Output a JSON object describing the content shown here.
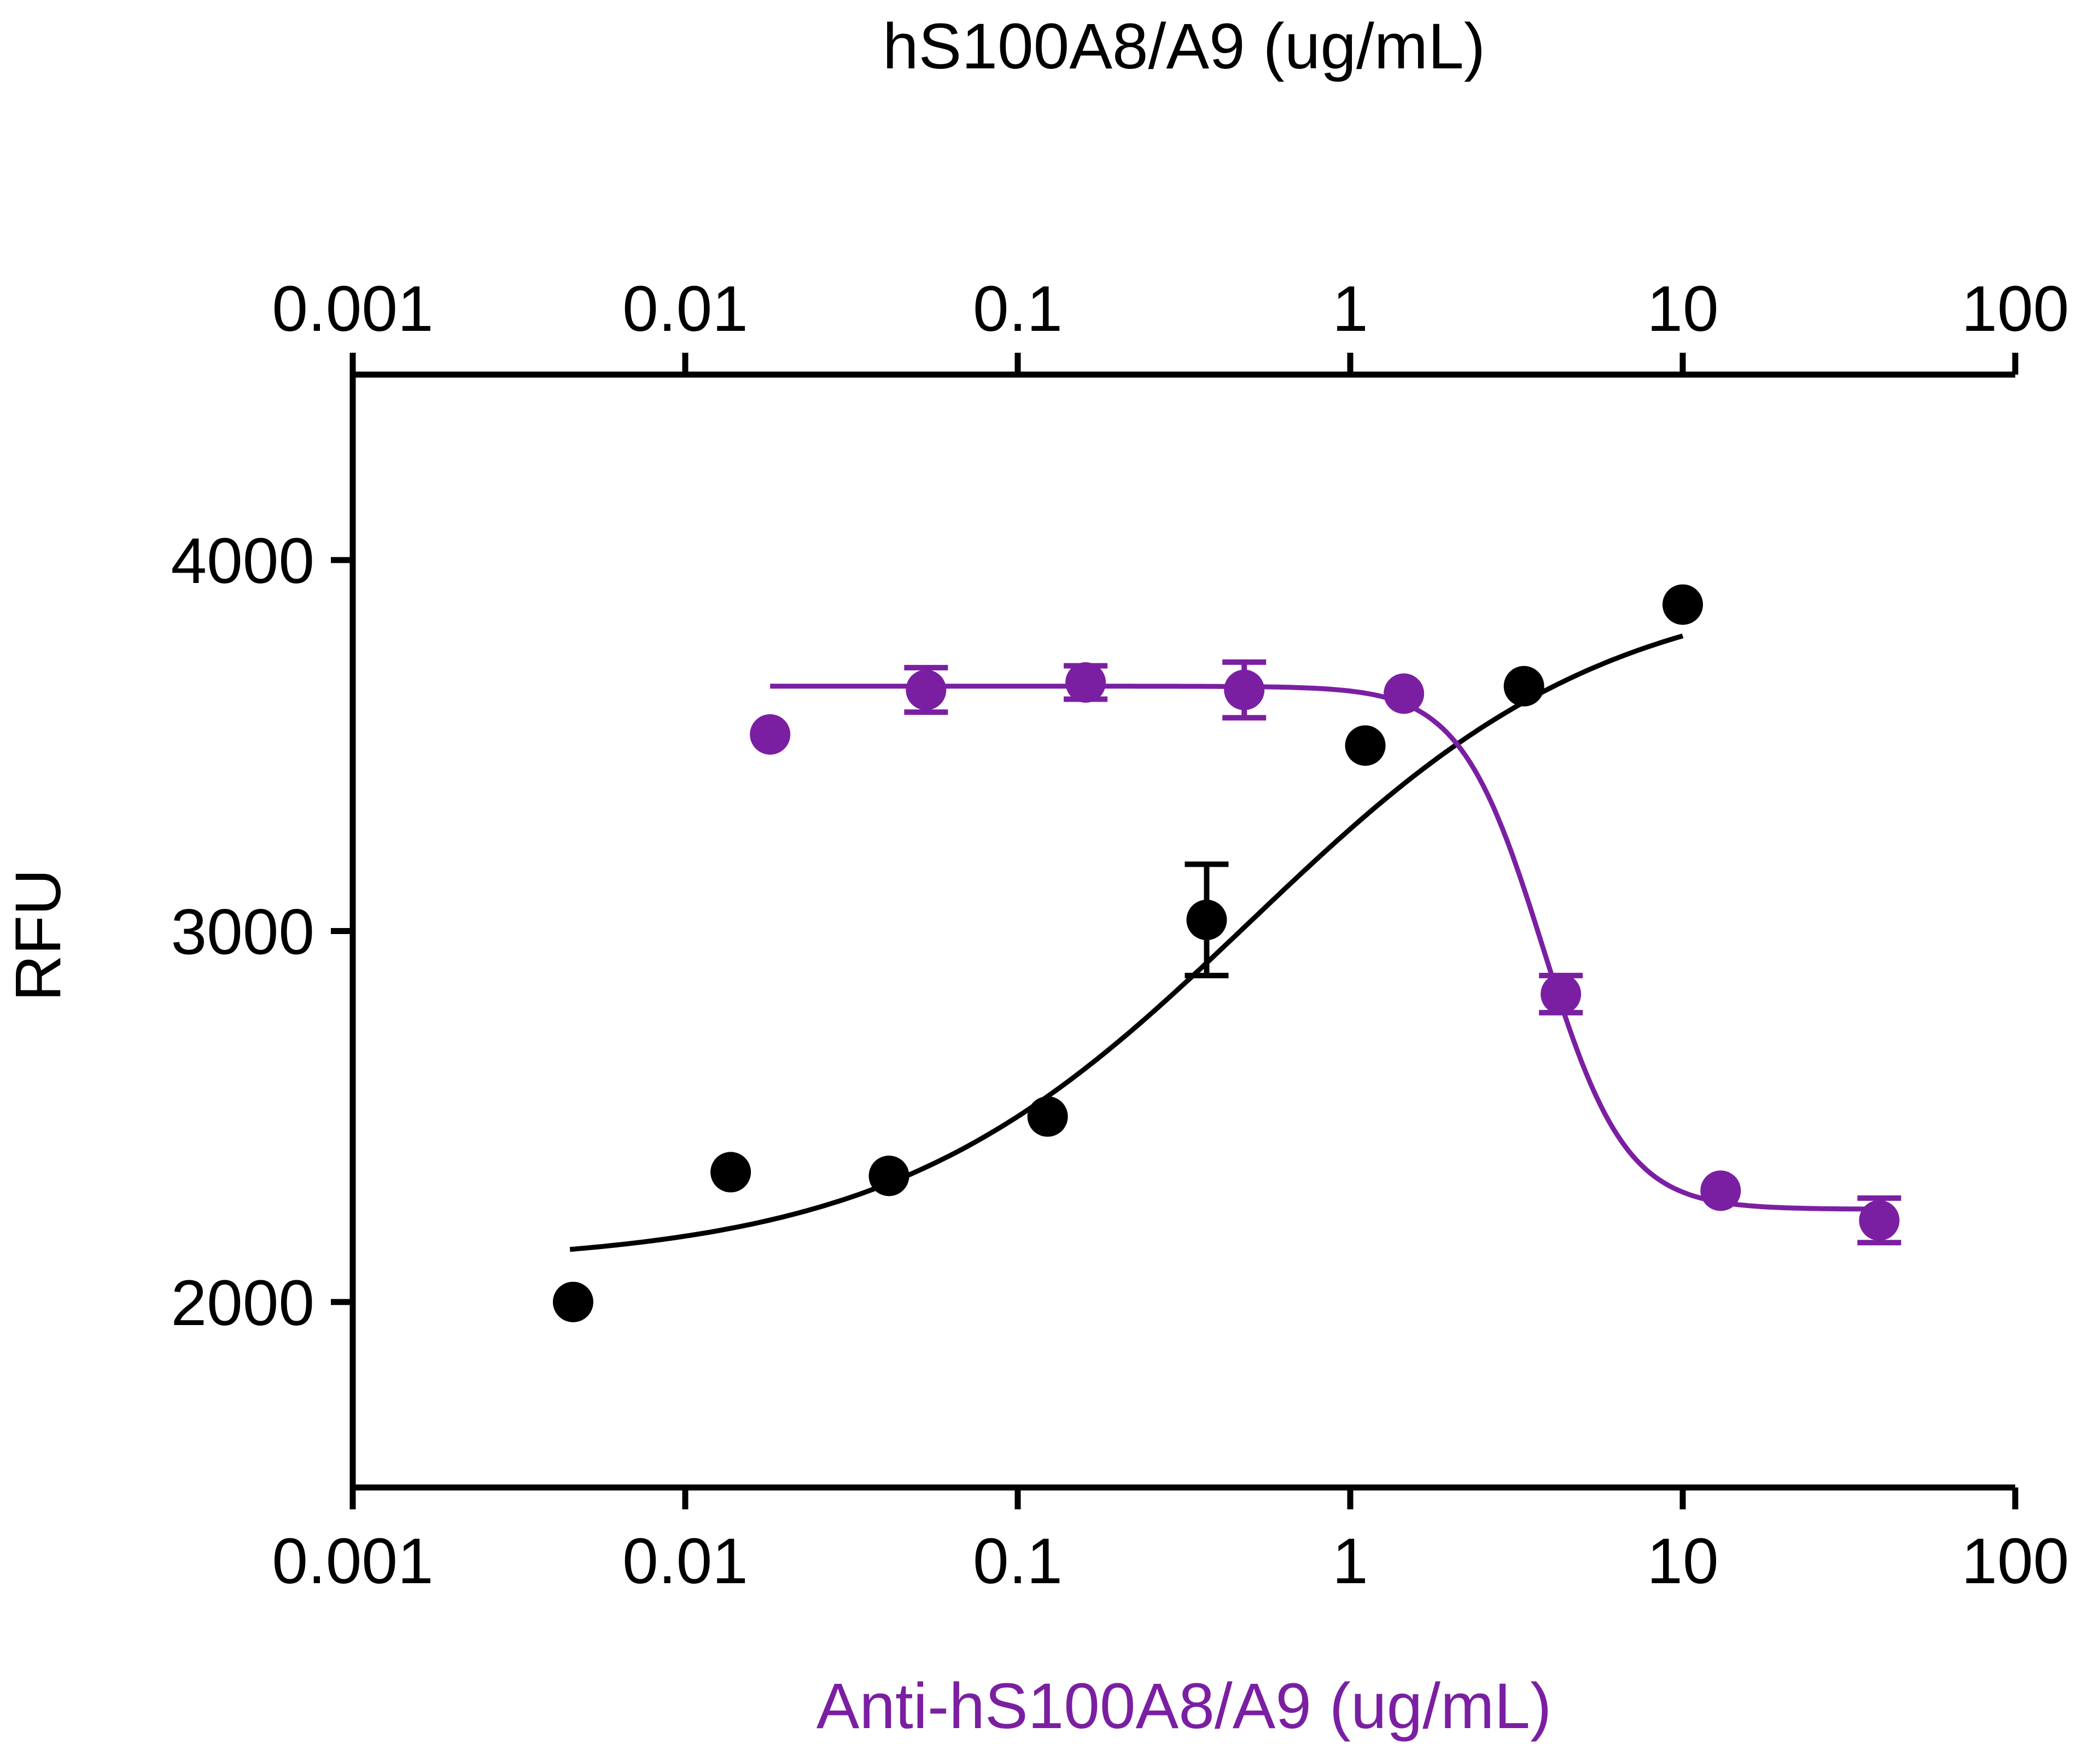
{
  "chart_data": {
    "type": "scatter",
    "title": "",
    "x_top": {
      "label": "hS100A8/A9 (ug/mL)",
      "scale": "log",
      "range": [
        0.001,
        100
      ],
      "ticks": [
        0.001,
        0.01,
        0.1,
        1,
        10,
        100
      ],
      "tick_labels": [
        "0.001",
        "0.01",
        "0.1",
        "1",
        "10",
        "100"
      ]
    },
    "x_bottom": {
      "label": "Anti-hS100A8/A9 (ug/mL)",
      "scale": "log",
      "range": [
        0.001,
        100
      ],
      "ticks": [
        0.001,
        0.01,
        0.1,
        1,
        10,
        100
      ],
      "tick_labels": [
        "0.001",
        "0.01",
        "0.1",
        "1",
        "10",
        "100"
      ]
    },
    "y": {
      "label": "RFU",
      "range": [
        1500,
        4500
      ],
      "ticks": [
        2000,
        3000,
        4000
      ],
      "tick_labels": [
        "2000",
        "3000",
        "4000"
      ]
    },
    "grid": false,
    "legend": "none",
    "series": [
      {
        "axis": "top",
        "color": "#000000",
        "marker": "circle",
        "points": [
          {
            "x": 0.0046,
            "y": 2000
          },
          {
            "x": 0.0137,
            "y": 2350
          },
          {
            "x": 0.041,
            "y": 2340
          },
          {
            "x": 0.123,
            "y": 2500
          },
          {
            "x": 0.37,
            "y": 3030,
            "err": 150
          },
          {
            "x": 1.11,
            "y": 3500
          },
          {
            "x": 3.33,
            "y": 3660
          },
          {
            "x": 10,
            "y": 3880
          }
        ],
        "fit": {
          "bottom": 2100,
          "top": 3950,
          "ec50": 0.5,
          "hill": 0.8,
          "x_from": 0.0045,
          "x_to": 10
        }
      },
      {
        "axis": "bottom",
        "color": "#7b1fa2",
        "marker": "circle",
        "points": [
          {
            "x": 0.018,
            "y": 3530
          },
          {
            "x": 0.053,
            "y": 3650,
            "err": 60
          },
          {
            "x": 0.16,
            "y": 3670,
            "err": 45
          },
          {
            "x": 0.48,
            "y": 3650,
            "err": 75
          },
          {
            "x": 1.45,
            "y": 3640
          },
          {
            "x": 4.3,
            "y": 2830,
            "err": 50
          },
          {
            "x": 13,
            "y": 2300
          },
          {
            "x": 39,
            "y": 2220,
            "err": 60
          }
        ],
        "fit": {
          "bottom": 2250,
          "top": 3660,
          "ec50": 3.8,
          "hill": -3.5,
          "x_from": 0.018,
          "x_to": 40
        }
      }
    ]
  }
}
